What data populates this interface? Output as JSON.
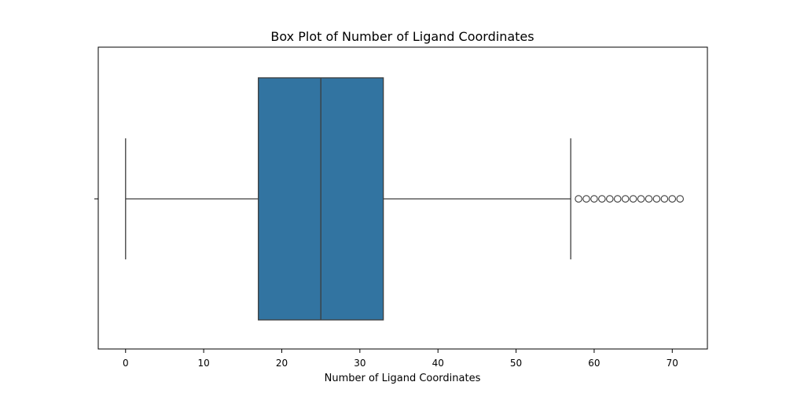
{
  "chart_data": {
    "type": "box",
    "orientation": "horizontal",
    "title": "Box Plot of Number of Ligand Coordinates",
    "xlabel": "Number of Ligand Coordinates",
    "ylabel": "",
    "xlim": [
      -3.5,
      74.5
    ],
    "xticks": [
      0,
      10,
      20,
      30,
      40,
      50,
      60,
      70
    ],
    "grid": false,
    "box": {
      "whisker_low": 0,
      "q1": 17,
      "median": 25,
      "q3": 33,
      "whisker_high": 57
    },
    "outliers": [
      58,
      59,
      60,
      61,
      62,
      63,
      64,
      65,
      66,
      67,
      68,
      69,
      70,
      71
    ],
    "colors": {
      "box_fill": "#3274a1",
      "line": "#3d3d3d",
      "axes": "#000000"
    }
  }
}
